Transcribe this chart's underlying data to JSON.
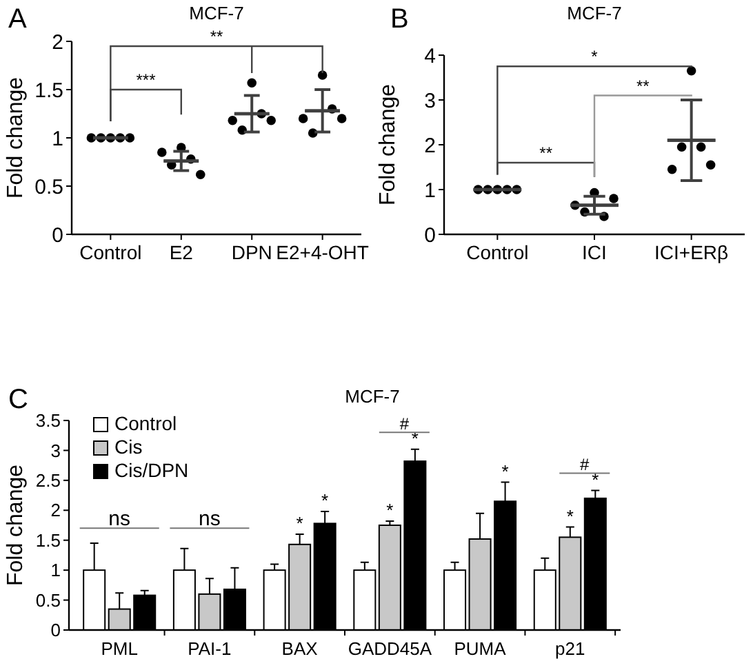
{
  "chart_data": [
    {
      "type": "scatter",
      "title": "MCF-7",
      "ylabel": "Fold change",
      "categories": [
        "Control",
        "E2",
        "DPN",
        "E2+4-OHT"
      ],
      "ylim": [
        0,
        2
      ],
      "yticks": [
        0,
        0.5,
        1,
        1.5,
        2
      ],
      "legend": false,
      "grid": false,
      "series": [
        {
          "type": "scatter",
          "marker": "circle",
          "color": "#000000",
          "x": [
            "Control",
            "Control",
            "Control",
            "Control",
            "Control",
            "E2",
            "E2",
            "E2",
            "E2",
            "E2",
            "DPN",
            "DPN",
            "DPN",
            "DPN",
            "DPN",
            "E2+4-OHT",
            "E2+4-OHT",
            "E2+4-OHT",
            "E2+4-OHT",
            "E2+4-OHT"
          ],
          "values": [
            1,
            1,
            1,
            1,
            1,
            0.85,
            0.72,
            0.9,
            0.78,
            0.62,
            1.18,
            1.08,
            1.57,
            1.25,
            1.18,
            1.2,
            1.05,
            1.65,
            1.3,
            1.2
          ]
        },
        {
          "type": "box",
          "color": "#404040",
          "boxes": [
            {
              "low": 1,
              "q1": 1,
              "median": 1,
              "q3": 1,
              "high": 1
            },
            {
              "low": 0.66,
              "q1": 0.76,
              "median": 0.76,
              "q3": 0.76,
              "high": 0.86
            },
            {
              "low": 1.06,
              "q1": 1.25,
              "median": 1.25,
              "q3": 1.25,
              "high": 1.44
            },
            {
              "low": 1.06,
              "q1": 1.28,
              "median": 1.28,
              "q3": 1.28,
              "high": 1.5
            }
          ]
        }
      ],
      "annotations": [
        "A",
        "***",
        "**"
      ]
    },
    {
      "type": "scatter",
      "title": "MCF-7",
      "ylabel": "Fold change",
      "categories": [
        "Control",
        "ICI",
        "ICI+ERβ"
      ],
      "ylim": [
        0,
        4
      ],
      "yticks": [
        0,
        1,
        2,
        3,
        4
      ],
      "legend": false,
      "grid": false,
      "series": [
        {
          "type": "scatter",
          "marker": "circle",
          "color": "#000000",
          "x": [
            "Control",
            "Control",
            "Control",
            "Control",
            "Control",
            "ICI",
            "ICI",
            "ICI",
            "ICI",
            "ICI",
            "ICI+ERβ",
            "ICI+ERβ",
            "ICI+ERβ",
            "ICI+ERβ",
            "ICI+ERβ"
          ],
          "values": [
            1,
            1,
            1,
            1,
            1,
            0.65,
            0.5,
            0.93,
            0.4,
            0.8,
            1.45,
            1.95,
            3.65,
            1.95,
            1.55
          ]
        },
        {
          "type": "box",
          "color": "#404040",
          "boxes": [
            {
              "low": 1,
              "q1": 1,
              "median": 1,
              "q3": 1,
              "high": 1
            },
            {
              "low": 0.45,
              "q1": 0.65,
              "median": 0.65,
              "q3": 0.65,
              "high": 0.85
            },
            {
              "low": 1.2,
              "q1": 2.1,
              "median": 2.1,
              "q3": 2.1,
              "high": 3.0
            }
          ]
        }
      ],
      "annotations": [
        "B",
        "*",
        "**",
        "**"
      ]
    },
    {
      "type": "bar",
      "title": "MCF-7",
      "ylabel": "Fold change",
      "categories": [
        "PML",
        "PAI-1",
        "BAX",
        "GADD45A",
        "PUMA",
        "p21"
      ],
      "ylim": [
        0,
        3.5
      ],
      "yticks": [
        0,
        0.5,
        1,
        1.5,
        2,
        2.5,
        3,
        3.5
      ],
      "legend": "top left",
      "grid": false,
      "series": [
        {
          "name": "Control",
          "color": "#ffffff",
          "values": [
            1,
            1,
            1,
            1,
            1,
            1
          ],
          "errors": [
            [
              1,
              1.45
            ],
            [
              1,
              1.36
            ],
            [
              1,
              1.1
            ],
            [
              1,
              1.13
            ],
            [
              1,
              1.13
            ],
            [
              1,
              1.2
            ]
          ]
        },
        {
          "name": "Cis",
          "color": "#c8c8c8",
          "values": [
            0.35,
            0.6,
            1.43,
            1.75,
            1.52,
            1.55
          ],
          "errors": [
            [
              0.35,
              0.62
            ],
            [
              0.6,
              0.86
            ],
            [
              1.43,
              1.6
            ],
            [
              1.75,
              1.82
            ],
            [
              1.52,
              1.95
            ],
            [
              1.55,
              1.72
            ]
          ]
        },
        {
          "name": "Cis/DPN",
          "color": "#000000",
          "values": [
            0.58,
            0.68,
            1.78,
            2.82,
            2.15,
            2.2
          ],
          "errors": [
            [
              0.58,
              0.66
            ],
            [
              0.68,
              1.04
            ],
            [
              1.78,
              1.98
            ],
            [
              2.82,
              3.02
            ],
            [
              2.15,
              2.47
            ],
            [
              2.2,
              2.33
            ]
          ]
        }
      ],
      "annotations": [
        "C",
        "ns",
        "ns",
        "*",
        "*",
        "*",
        "*",
        "#",
        "*",
        "*",
        "*",
        "#"
      ]
    }
  ]
}
